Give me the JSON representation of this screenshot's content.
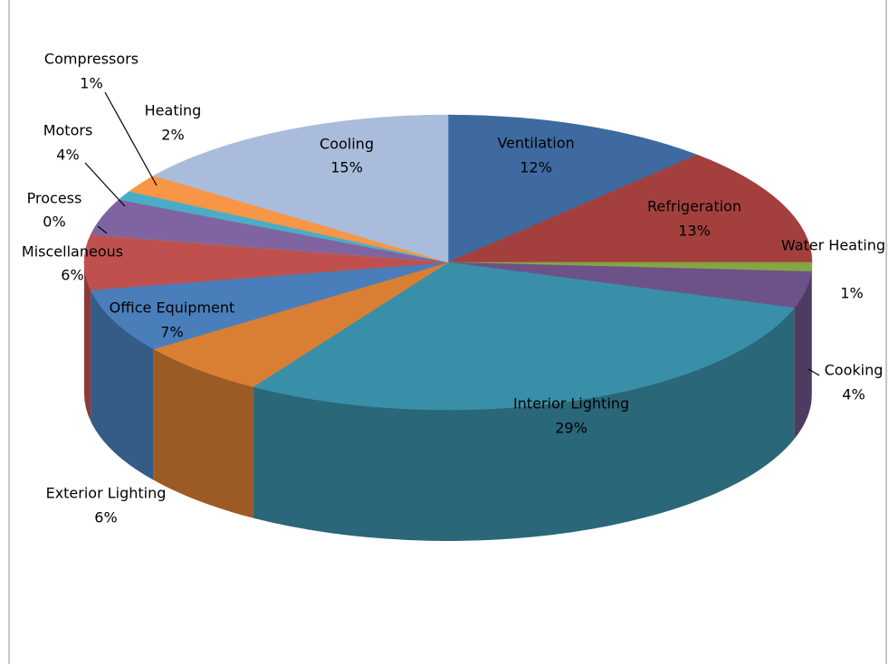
{
  "chart_data": {
    "type": "pie",
    "categories": [
      "Ventilation",
      "Refrigeration",
      "Water Heating",
      "Cooking",
      "Interior Lighting",
      "Exterior Lighting",
      "Office Equipment",
      "Miscellaneous",
      "Process",
      "Motors",
      "Compressors",
      "Heating",
      "Cooling"
    ],
    "values": [
      12,
      13,
      1,
      4,
      29,
      6,
      7,
      6,
      0,
      4,
      1,
      2,
      15
    ],
    "value_labels": [
      "12%",
      "13%",
      "1%",
      "4%",
      "29%",
      "6%",
      "7%",
      "6%",
      "0%",
      "4%",
      "1%",
      "2%",
      "15%"
    ],
    "colors": [
      "#3e6aa0",
      "#a3403d",
      "#86a545",
      "#6c5288",
      "#3a8fa8",
      "#d97f34",
      "#4a7ebb",
      "#c0504d",
      "#9bbb59",
      "#8064a2",
      "#4bacc6",
      "#f79646",
      "#a9bcdb"
    ]
  }
}
